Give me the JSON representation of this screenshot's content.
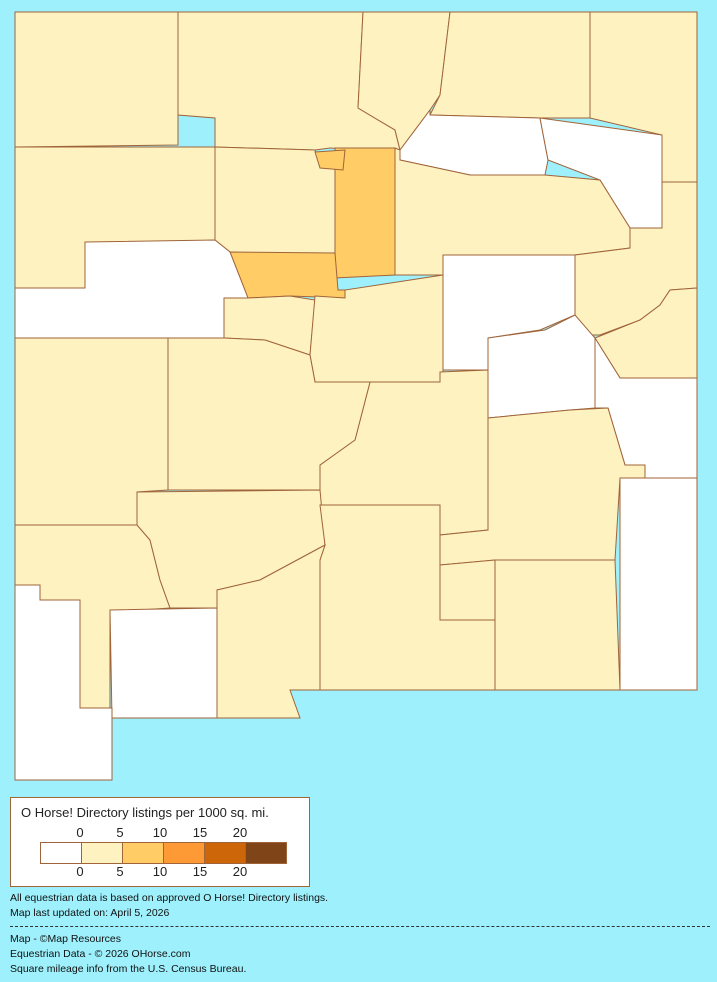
{
  "colors": {
    "background": "#9ef1fc",
    "border": "#a0643a",
    "bins": [
      "#ffffff",
      "#fdf2c0",
      "#ffcc66",
      "#fd9a35",
      "#cc6609",
      "#7f4519"
    ]
  },
  "legend": {
    "title": "O Horse! Directory listings per 1000 sq. mi.",
    "top_ticks": [
      "0",
      "5",
      "10",
      "15",
      "20"
    ],
    "bottom_ticks": [
      "0",
      "5",
      "10",
      "15",
      "20"
    ]
  },
  "notes": {
    "data_basis": "All equestrian data is based on approved O Horse! Directory listings.",
    "updated": "Map last updated on: April 5, 2026"
  },
  "credits": {
    "map": "Map - ©Map Resources",
    "data": "Equestrian Data - © 2026 OHorse.com",
    "census": "Square mileage info from the U.S. Census Bureau."
  }
}
